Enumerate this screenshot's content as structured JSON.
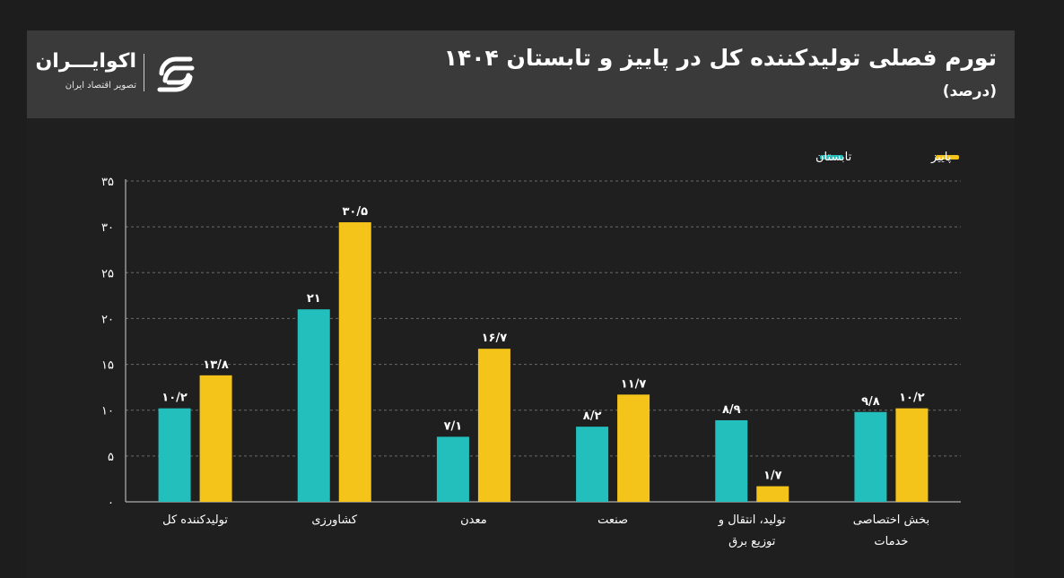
{
  "header": {
    "title": "تورم فصلی تولیدکننده کل در پاییز و تابستان ۱۴۰۴",
    "subtitle": "(درصد)"
  },
  "logo": {
    "name": "اکوایـــران",
    "tagline": "تصویر اقتصاد ایران"
  },
  "colors": {
    "summer": "#22bfbd",
    "autumn": "#f4c41b",
    "grid": "#6a6a6a"
  },
  "chart_data": {
    "type": "bar",
    "title": "تورم فصلی تولیدکننده کل در پاییز و تابستان ۱۴۰۴",
    "unit": "(درصد)",
    "categories": [
      [
        "تولیدکننده کل"
      ],
      [
        "کشاورزی"
      ],
      [
        "معدن"
      ],
      [
        "صنعت"
      ],
      [
        "تولید، انتقال و",
        "توزیع برق"
      ],
      [
        "بخش اختصاصی",
        "خدمات"
      ]
    ],
    "series": [
      {
        "name": "تابستان",
        "values": [
          10.2,
          21,
          7.1,
          8.2,
          8.9,
          9.8
        ],
        "labels": [
          "۱۰/۲",
          "۲۱",
          "۷/۱",
          "۸/۲",
          "۸/۹",
          "۹/۸"
        ]
      },
      {
        "name": "پاییز",
        "values": [
          13.8,
          30.5,
          16.7,
          11.7,
          1.7,
          10.2
        ],
        "labels": [
          "۱۳/۸",
          "۳۰/۵",
          "۱۶/۷",
          "۱۱/۷",
          "۱/۷",
          "۱۰/۲"
        ]
      }
    ],
    "ylim": [
      0,
      35
    ],
    "yticks": [
      0,
      5,
      10,
      15,
      20,
      25,
      30,
      35
    ],
    "ytick_labels": [
      "۰",
      "۵",
      "۱۰",
      "۱۵",
      "۲۰",
      "۲۵",
      "۳۰",
      "۳۵"
    ],
    "legend": [
      "پاییز",
      "تابستان"
    ],
    "legend_position": "top-right",
    "grid": true
  }
}
